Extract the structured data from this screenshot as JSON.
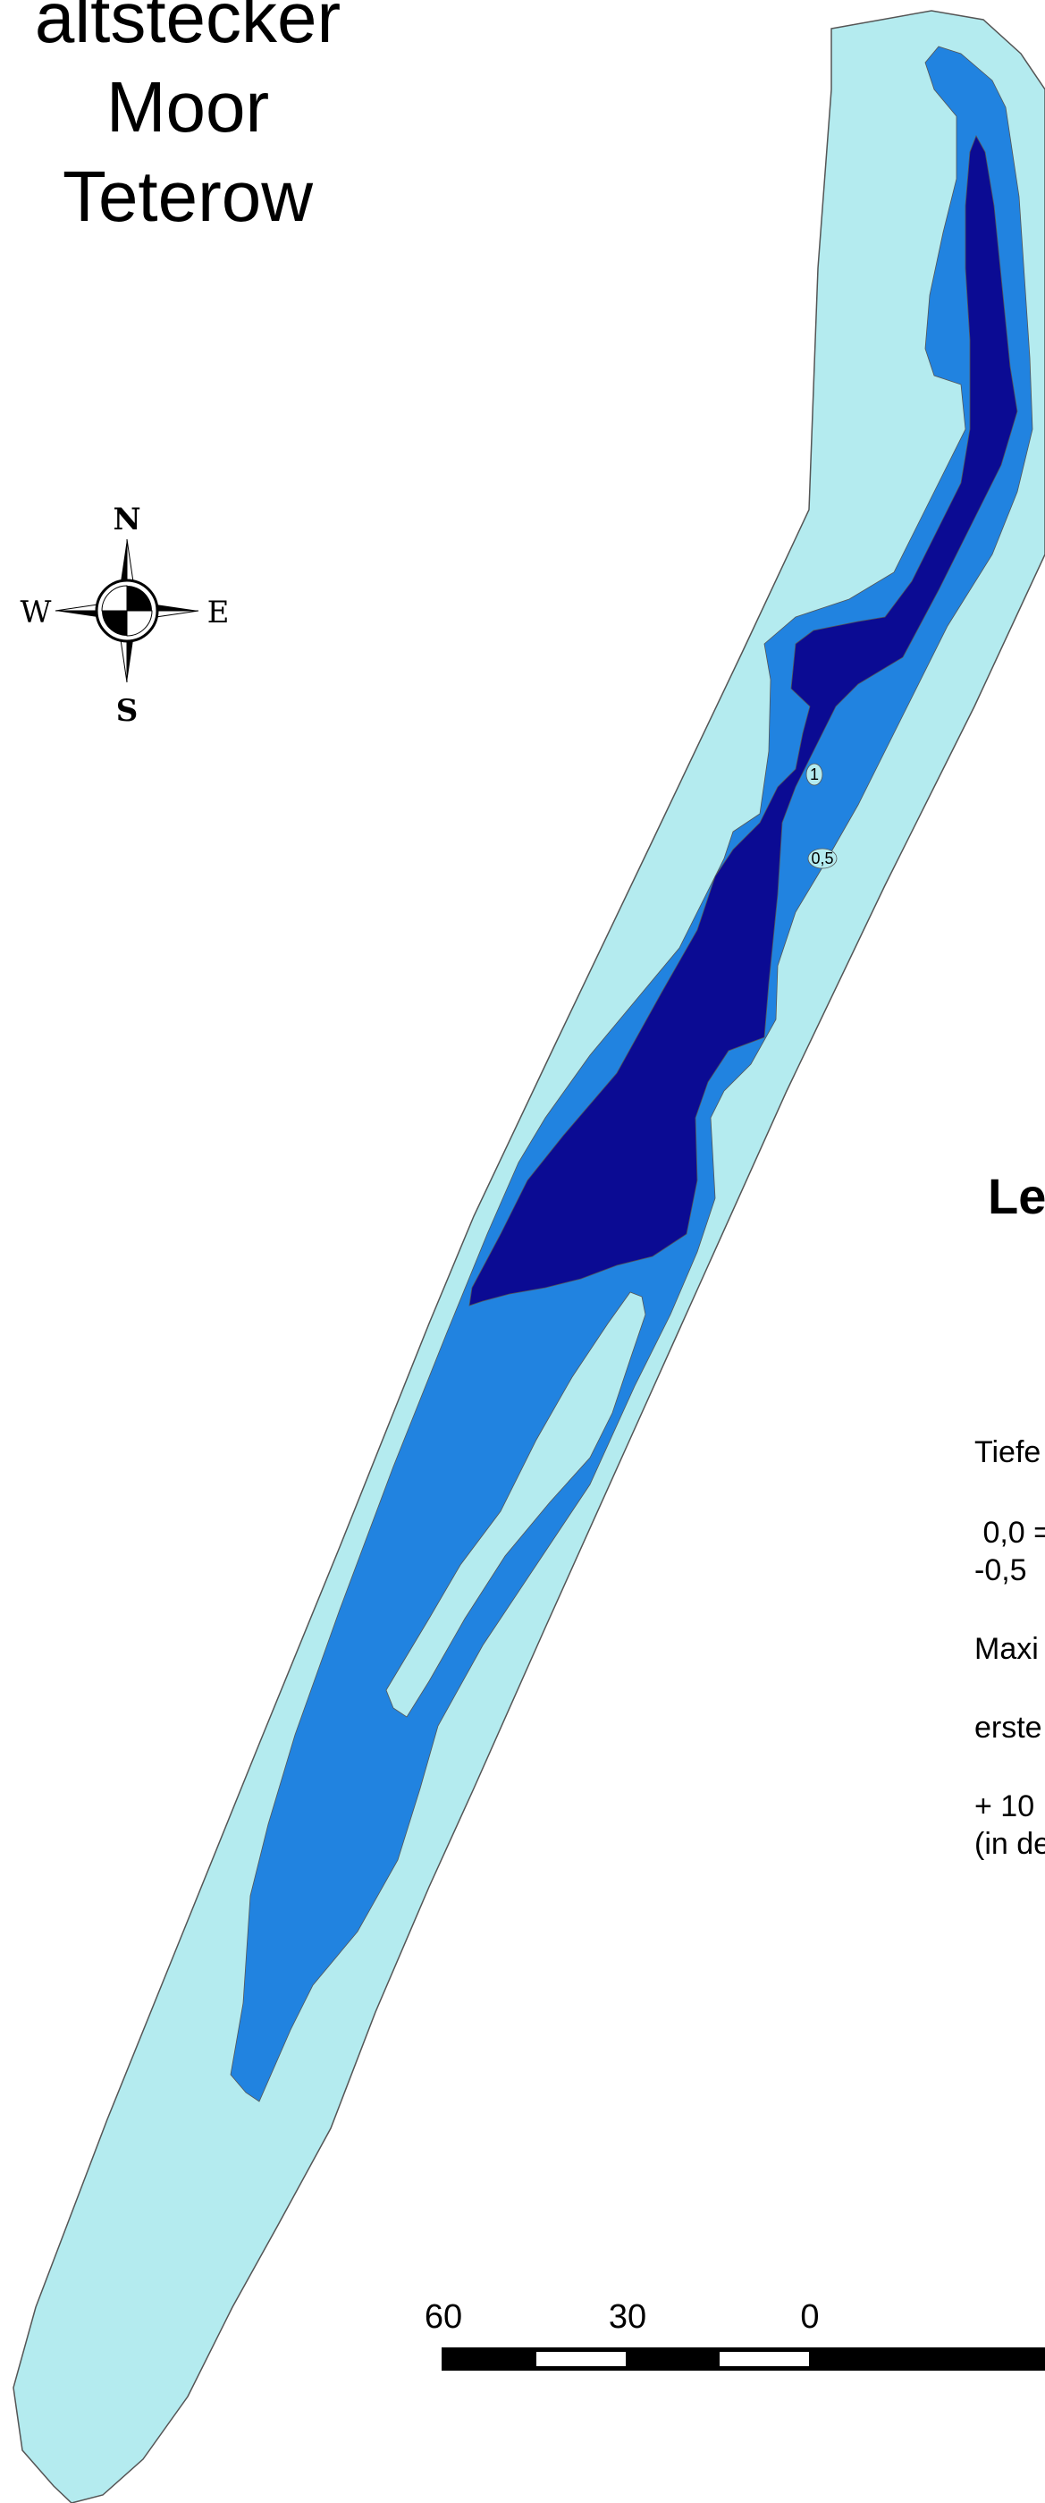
{
  "map": {
    "title_line1": "altstecker Moor",
    "title_line2": "Teterow",
    "colors": {
      "shore_zone": "#b4ebef",
      "mid_zone": "#2183e0",
      "deep_zone": "#0b0b93",
      "outline": "#555555"
    },
    "contour_labels": [
      "1",
      "0,5"
    ]
  },
  "compass": {
    "north": "N",
    "south": "S",
    "east": "E",
    "west": "W",
    "icon": "compass-rose-icon"
  },
  "legend": {
    "title": "Le",
    "lines": [
      "Tiefe",
      " 0,0 =",
      "-0,5",
      "Maxi",
      "erste",
      "+ 10",
      "(in de"
    ]
  },
  "scale_bar": {
    "labels": [
      "60",
      "30",
      "0"
    ]
  }
}
